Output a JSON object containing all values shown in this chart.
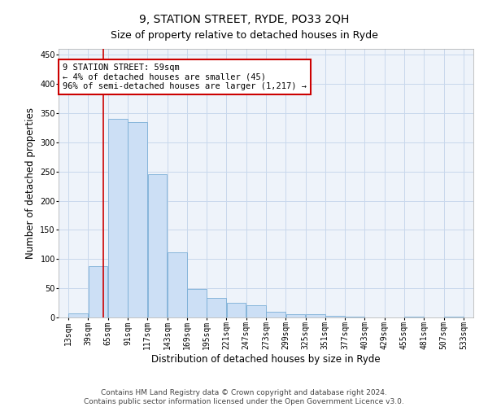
{
  "title": "9, STATION STREET, RYDE, PO33 2QH",
  "subtitle": "Size of property relative to detached houses in Ryde",
  "xlabel": "Distribution of detached houses by size in Ryde",
  "ylabel": "Number of detached properties",
  "bar_color": "#ccdff5",
  "bar_edge_color": "#7aaed6",
  "grid_color": "#c8d8ec",
  "background_color": "#eef3fa",
  "vline_x": 59,
  "vline_color": "#cc0000",
  "annotation_text": "9 STATION STREET: 59sqm\n← 4% of detached houses are smaller (45)\n96% of semi-detached houses are larger (1,217) →",
  "annotation_box_color": "#cc0000",
  "bin_edges": [
    13,
    39,
    65,
    91,
    117,
    143,
    169,
    195,
    221,
    247,
    273,
    299,
    325,
    351,
    377,
    403,
    429,
    455,
    481,
    507,
    533
  ],
  "values": [
    7,
    88,
    340,
    335,
    245,
    112,
    49,
    33,
    25,
    21,
    10,
    5,
    5,
    3,
    2,
    0,
    0,
    2,
    0,
    2
  ],
  "ylim": [
    0,
    460
  ],
  "yticks": [
    0,
    50,
    100,
    150,
    200,
    250,
    300,
    350,
    400,
    450
  ],
  "footer": "Contains HM Land Registry data © Crown copyright and database right 2024.\nContains public sector information licensed under the Open Government Licence v3.0.",
  "title_fontsize": 10,
  "subtitle_fontsize": 9,
  "xlabel_fontsize": 8.5,
  "ylabel_fontsize": 8.5,
  "tick_fontsize": 7,
  "footer_fontsize": 6.5,
  "ann_fontsize": 7.5
}
